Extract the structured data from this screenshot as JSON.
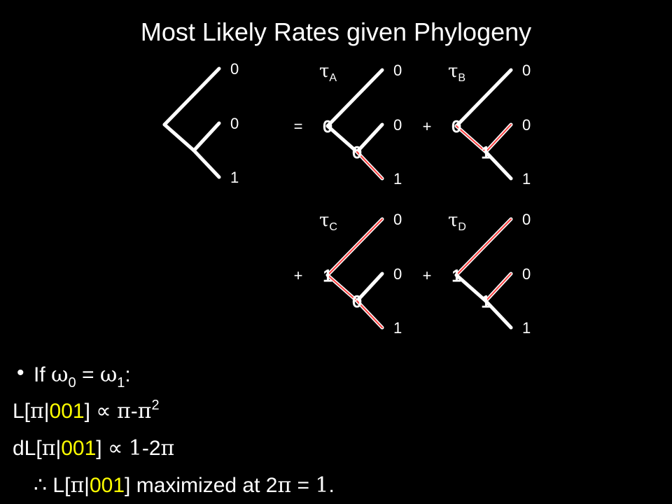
{
  "title": "Most Likely Rates given Phylogeny",
  "tree": {
    "leaves": [
      "0",
      "0",
      "1"
    ]
  },
  "decompositions": [
    {
      "operator": "=",
      "tau": "τ",
      "sub": "A",
      "root": "0",
      "internal": "0",
      "leaves": [
        "0",
        "0",
        "1"
      ]
    },
    {
      "operator": "+",
      "tau": "τ",
      "sub": "B",
      "root": "0",
      "internal": "1",
      "leaves": [
        "0",
        "0",
        "1"
      ]
    },
    {
      "operator": "+",
      "tau": "τ",
      "sub": "C",
      "root": "1",
      "internal": "0",
      "leaves": [
        "0",
        "0",
        "1"
      ]
    },
    {
      "operator": "+",
      "tau": "τ",
      "sub": "D",
      "root": "1",
      "internal": "1",
      "leaves": [
        "0",
        "0",
        "1"
      ]
    }
  ],
  "lines": [
    [
      "If ",
      "ω",
      "0",
      " = ",
      "ω",
      "1",
      ":"
    ],
    [
      "L[",
      "π",
      "|",
      "001",
      "] ∝ ",
      "π",
      "-",
      "π",
      "2"
    ],
    [
      "dL[",
      "π",
      "|",
      "001",
      "] ∝ ",
      "1",
      "-2",
      "π"
    ],
    [
      "∴",
      " L[",
      "π",
      "|",
      "001",
      "] maximized at 2",
      "π",
      " = ",
      "1",
      "."
    ]
  ]
}
